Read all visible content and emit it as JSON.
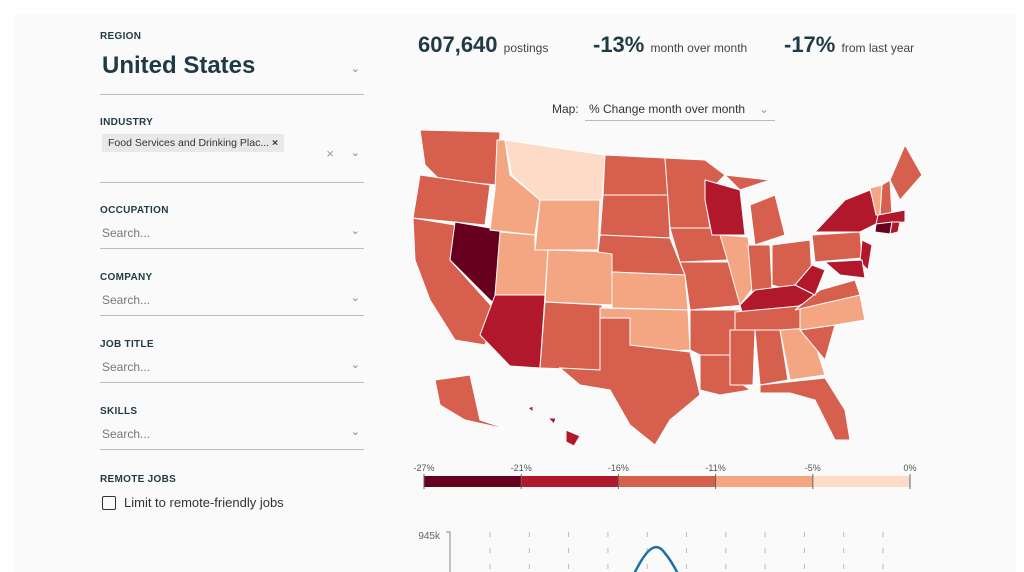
{
  "sidebar": {
    "region": {
      "label": "REGION",
      "value": "United States"
    },
    "industry": {
      "label": "INDUSTRY",
      "tag": "Food Services and Drinking Plac...",
      "tag_remove": "×",
      "clear": "×"
    },
    "occupation": {
      "label": "OCCUPATION",
      "placeholder": "Search..."
    },
    "company": {
      "label": "COMPANY",
      "placeholder": "Search..."
    },
    "job_title": {
      "label": "JOB TITLE",
      "placeholder": "Search..."
    },
    "skills": {
      "label": "SKILLS",
      "placeholder": "Search..."
    },
    "remote": {
      "label": "REMOTE JOBS",
      "checkbox": "Limit to remote-friendly jobs",
      "checked": false
    }
  },
  "stats": [
    {
      "value": "607,640",
      "label": "postings"
    },
    {
      "value": "-13%",
      "label": "month over month"
    },
    {
      "value": "-17%",
      "label": "from last year"
    }
  ],
  "map": {
    "label": "Map:",
    "selected": "% Change month over month",
    "colors": {
      "c1": "#67001f",
      "c2": "#b2182b",
      "c3": "#d6604d",
      "c4": "#f4a582",
      "c5": "#fddbc7"
    },
    "legend": [
      "-27%",
      "-21%",
      "-16%",
      "-11%",
      "-5%",
      "0%"
    ]
  },
  "trend": {
    "y_max_label": "945k",
    "line_color": "#1f6fa3"
  }
}
